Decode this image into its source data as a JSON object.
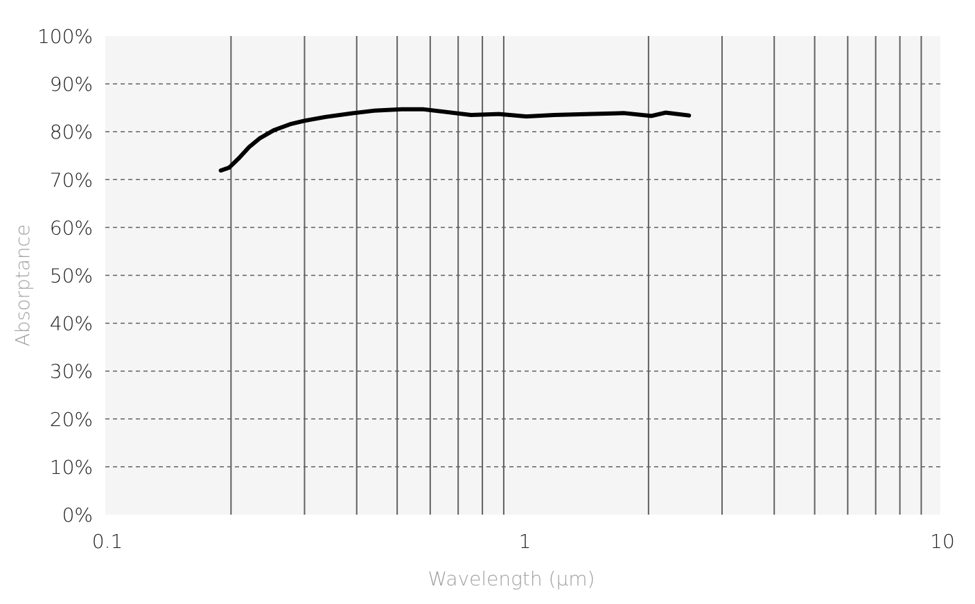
{
  "chart_data": {
    "type": "line",
    "title": "",
    "xlabel": "Wavelength (µm)",
    "ylabel": "Absorptance",
    "xscale": "log",
    "xlim": [
      0.1,
      10
    ],
    "ylim": [
      0,
      100
    ],
    "x_ticks": [
      {
        "v": 0.1,
        "label": "0.1"
      },
      {
        "v": 1,
        "label": "1"
      },
      {
        "v": 10,
        "label": "10"
      }
    ],
    "y_ticks": [
      {
        "v": 0,
        "label": "0%"
      },
      {
        "v": 10,
        "label": "10%"
      },
      {
        "v": 20,
        "label": "20%"
      },
      {
        "v": 30,
        "label": "30%"
      },
      {
        "v": 40,
        "label": "40%"
      },
      {
        "v": 50,
        "label": "50%"
      },
      {
        "v": 60,
        "label": "60%"
      },
      {
        "v": 70,
        "label": "70%"
      },
      {
        "v": 80,
        "label": "80%"
      },
      {
        "v": 90,
        "label": "90%"
      },
      {
        "v": 100,
        "label": "100%"
      }
    ],
    "grid": {
      "x_minor": "solid",
      "y_major": "dashed"
    },
    "legend": "none",
    "colors": {
      "line": "#000000",
      "plot_bg": "#f5f5f5",
      "grid_v": "#606060",
      "grid_h": "#606060",
      "axis_title": "#a0a0a0",
      "tick_label": "#222222"
    },
    "series": [
      {
        "x": [
          0.189,
          0.198,
          0.209,
          0.221,
          0.234,
          0.253,
          0.278,
          0.3,
          0.337,
          0.393,
          0.44,
          0.513,
          0.576,
          0.645,
          0.751,
          0.876,
          1.02,
          1.19,
          1.44,
          1.75,
          2.03,
          2.2,
          2.5
        ],
        "y": [
          71.9,
          72.5,
          74.5,
          76.8,
          78.6,
          80.3,
          81.6,
          82.3,
          83.1,
          83.9,
          84.4,
          84.7,
          84.7,
          84.2,
          83.5,
          83.7,
          83.2,
          83.5,
          83.7,
          83.9,
          83.3,
          84.0,
          83.4
        ]
      }
    ]
  }
}
